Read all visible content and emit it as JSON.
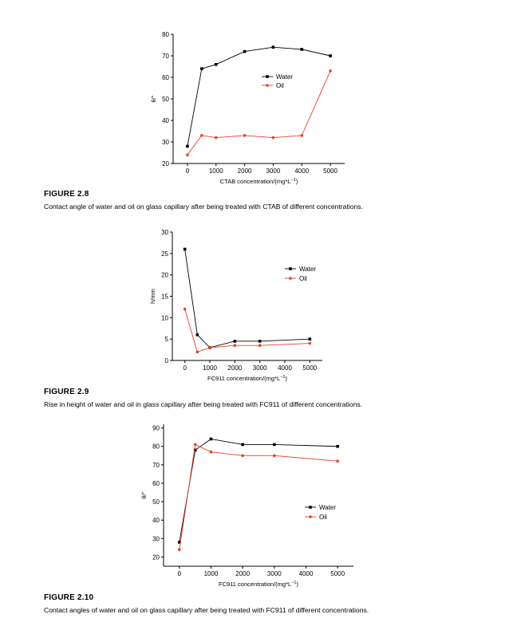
{
  "figures": [
    {
      "id": "FIGURE 2.8",
      "label": "FIGURE 2.8",
      "caption": "Contact angle of water and oil on glass capillary after being treated with CTAB of different concentrations.",
      "chart_data": {
        "type": "line",
        "xlabel": "CTAB concentration/(mg*L",
        "xlabel_sup": "−1",
        "xlabel_tail": ")",
        "ylabel": "θ/°",
        "xlim": [
          -500,
          5500
        ],
        "ylim": [
          20,
          80
        ],
        "xticks": [
          0,
          1000,
          2000,
          3000,
          4000,
          5000
        ],
        "yticks": [
          20,
          30,
          40,
          50,
          60,
          70,
          80
        ],
        "legend_position": "center-right",
        "series": [
          {
            "name": "Water",
            "color": "#000000",
            "marker": "square",
            "x": [
              0,
              500,
              1000,
              2000,
              3000,
              4000,
              5000
            ],
            "y": [
              28,
              64,
              66,
              72,
              74,
              73,
              70
            ]
          },
          {
            "name": "Oil",
            "color": "#e8402a",
            "marker": "circle",
            "x": [
              0,
              500,
              1000,
              2000,
              3000,
              4000,
              5000
            ],
            "y": [
              24,
              33,
              32,
              33,
              32,
              33,
              63
            ]
          }
        ]
      }
    },
    {
      "id": "FIGURE 2.9",
      "label": "FIGURE 2.9",
      "caption": "Rise in height of water and oil in glass capillary after being treated with FC911 of different concentrations.",
      "chart_data": {
        "type": "line",
        "xlabel": "FC911 concentration/(mg*L",
        "xlabel_sup": "−1",
        "xlabel_tail": ")",
        "ylabel": "h/mm",
        "xlim": [
          -500,
          5500
        ],
        "ylim": [
          0,
          30
        ],
        "xticks": [
          0,
          1000,
          2000,
          3000,
          4000,
          5000
        ],
        "yticks": [
          0,
          5,
          10,
          15,
          20,
          25,
          30
        ],
        "legend_position": "right",
        "series": [
          {
            "name": "Water",
            "color": "#000000",
            "marker": "square",
            "x": [
              0,
              500,
              1000,
              2000,
              3000,
              5000
            ],
            "y": [
              26,
              6,
              3,
              4.5,
              4.5,
              5
            ]
          },
          {
            "name": "Oil",
            "color": "#e8402a",
            "marker": "circle",
            "x": [
              0,
              500,
              1000,
              2000,
              3000,
              5000
            ],
            "y": [
              12,
              2,
              3,
              3.5,
              3.5,
              4
            ]
          }
        ]
      }
    },
    {
      "id": "FIGURE 2.10",
      "label": "FIGURE 2.10",
      "caption": "Contact angles of water and oil on glass capillary after being treated with FC911 of different concentrations.",
      "chart_data": {
        "type": "line",
        "xlabel": "FC911 concentration/(mg*L",
        "xlabel_sup": "−1",
        "xlabel_tail": ")",
        "ylabel": "θ/°",
        "xlim": [
          -500,
          5500
        ],
        "ylim": [
          15,
          92
        ],
        "xticks": [
          0,
          1000,
          2000,
          3000,
          4000,
          5000
        ],
        "yticks": [
          20,
          30,
          40,
          50,
          60,
          70,
          80,
          90
        ],
        "legend_position": "lower-right",
        "series": [
          {
            "name": "Water",
            "color": "#000000",
            "marker": "square",
            "x": [
              0,
              500,
              1000,
              2000,
              3000,
              5000
            ],
            "y": [
              28,
              78,
              84,
              81,
              81,
              80
            ]
          },
          {
            "name": "Oil",
            "color": "#e8402a",
            "marker": "circle",
            "x": [
              0,
              500,
              1000,
              2000,
              3000,
              5000
            ],
            "y": [
              24,
              81,
              77,
              75,
              75,
              72
            ]
          }
        ]
      }
    }
  ]
}
